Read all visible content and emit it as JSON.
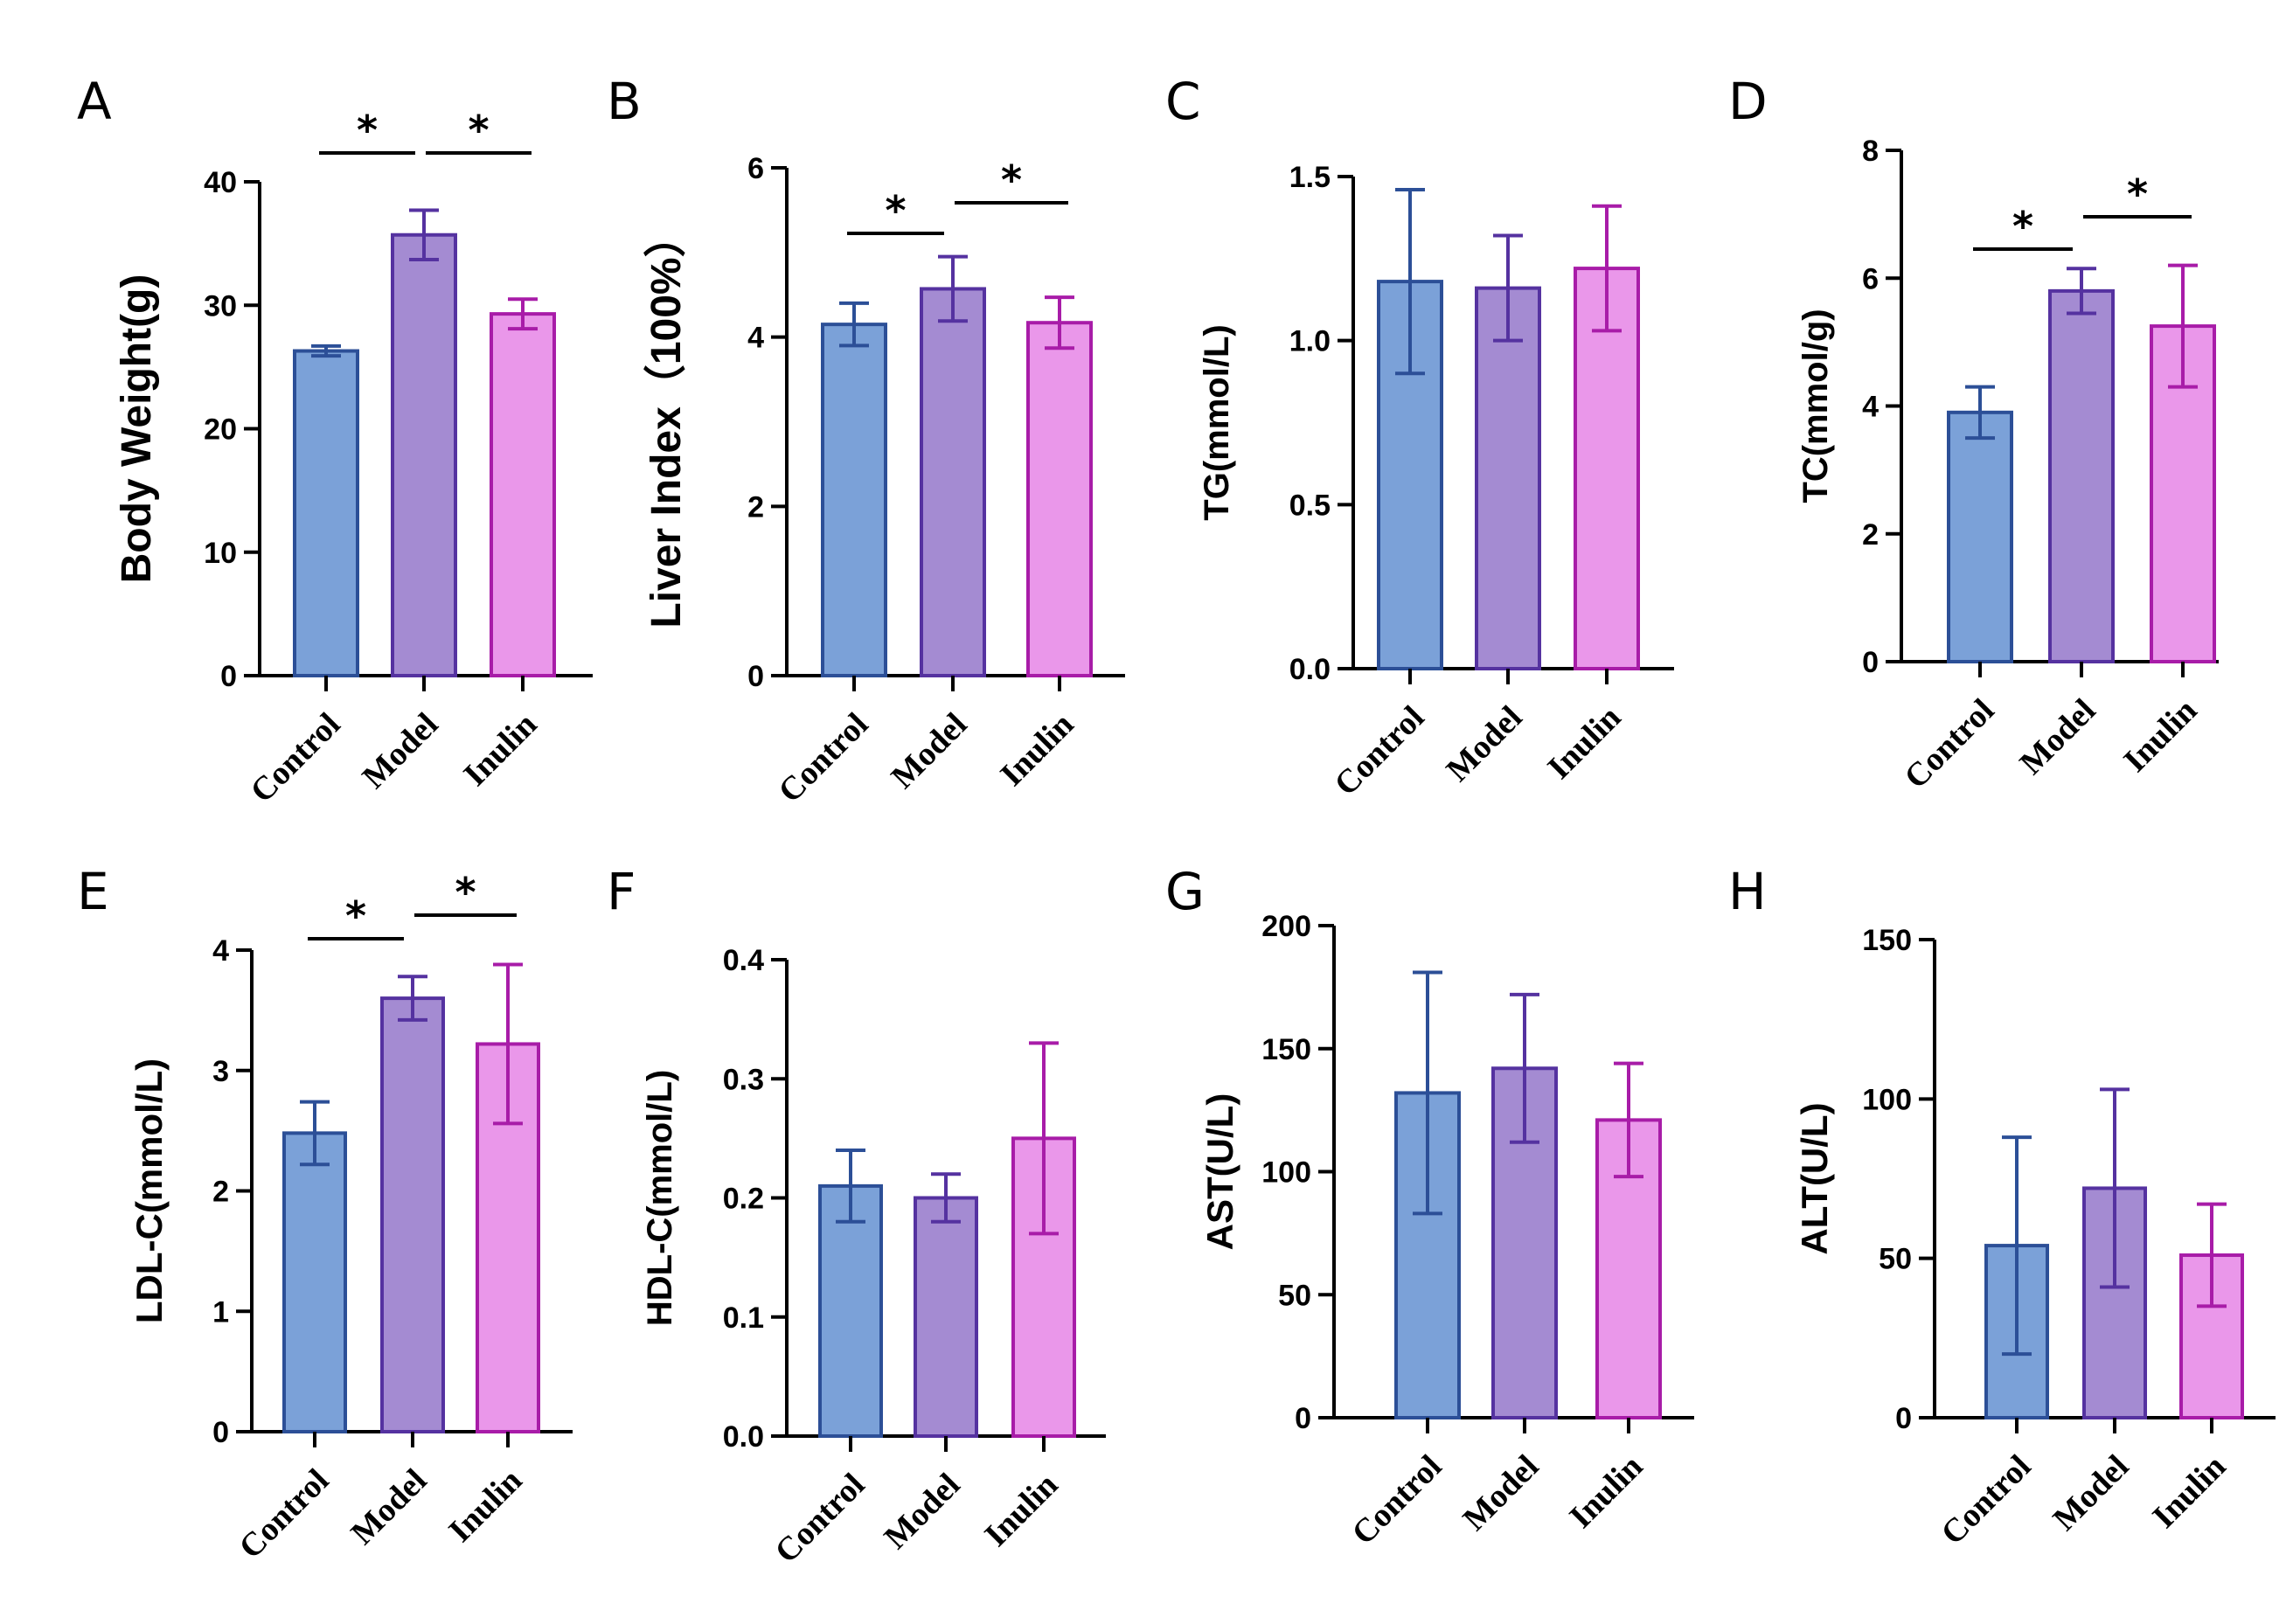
{
  "figure": {
    "colors": {
      "fills": [
        "#7ba1d8",
        "#a48bd2",
        "#ea97ea"
      ],
      "strokes": [
        "#2c4f97",
        "#5532a0",
        "#a81ca8"
      ],
      "axis": "#000000"
    }
  },
  "chart_data": [
    {
      "panel": "A",
      "type": "bar",
      "categories": [
        "Control",
        "Model",
        "Inulin"
      ],
      "values": [
        26.3,
        35.7,
        29.3
      ],
      "errors": [
        0.4,
        2.0,
        1.2
      ],
      "ylabel": "Body Weight(g)",
      "ylim": [
        0,
        40
      ],
      "yticks": [
        0,
        10,
        20,
        30,
        40
      ],
      "ytick_labels": [
        "0",
        "10",
        "20",
        "30",
        "40"
      ],
      "significance": [
        {
          "from": 0,
          "to": 1,
          "label": "*"
        },
        {
          "from": 1,
          "to": 2,
          "label": "*"
        }
      ]
    },
    {
      "panel": "B",
      "type": "bar",
      "categories": [
        "Control",
        "Model",
        "Inulin"
      ],
      "values": [
        4.15,
        4.57,
        4.17
      ],
      "errors": [
        0.25,
        0.38,
        0.3
      ],
      "ylabel": "Liver Index（100%）",
      "ylim": [
        0,
        6
      ],
      "yticks": [
        0,
        2,
        4,
        6
      ],
      "ytick_labels": [
        "0",
        "2",
        "4",
        "6"
      ],
      "significance": [
        {
          "from": 0,
          "to": 1,
          "label": "*"
        },
        {
          "from": 1,
          "to": 2,
          "label": "*"
        }
      ]
    },
    {
      "panel": "C",
      "type": "bar",
      "categories": [
        "Control",
        "Model",
        "Inulin"
      ],
      "values": [
        1.18,
        1.16,
        1.22
      ],
      "errors": [
        0.28,
        0.16,
        0.19
      ],
      "ylabel": "TG(mmol/L)",
      "ylim": [
        0,
        1.5
      ],
      "yticks": [
        0,
        0.5,
        1.0,
        1.5
      ],
      "ytick_labels": [
        "0.0",
        "0.5",
        "1.0",
        "1.5"
      ],
      "significance": []
    },
    {
      "panel": "D",
      "type": "bar",
      "categories": [
        "Control",
        "Model",
        "Inulin"
      ],
      "values": [
        3.9,
        5.8,
        5.25
      ],
      "errors": [
        0.4,
        0.35,
        0.95
      ],
      "ylabel": "TC(mmol/g)",
      "ylim": [
        0,
        8
      ],
      "yticks": [
        0,
        2,
        4,
        6,
        8
      ],
      "ytick_labels": [
        "0",
        "2",
        "4",
        "6",
        "8"
      ],
      "significance": [
        {
          "from": 0,
          "to": 1,
          "label": "*"
        },
        {
          "from": 1,
          "to": 2,
          "label": "*"
        }
      ]
    },
    {
      "panel": "E",
      "type": "bar",
      "categories": [
        "Control",
        "Model",
        "Inulin"
      ],
      "values": [
        2.48,
        3.6,
        3.22
      ],
      "errors": [
        0.26,
        0.18,
        0.66
      ],
      "ylabel": "LDL-C(mmol/L)",
      "ylim": [
        0,
        4
      ],
      "yticks": [
        0,
        1,
        2,
        3,
        4
      ],
      "ytick_labels": [
        "0",
        "1",
        "2",
        "3",
        "4"
      ],
      "significance": [
        {
          "from": 0,
          "to": 1,
          "label": "*"
        },
        {
          "from": 1,
          "to": 2,
          "label": "*"
        }
      ]
    },
    {
      "panel": "F",
      "type": "bar",
      "categories": [
        "Control",
        "Model",
        "Inulin"
      ],
      "values": [
        0.21,
        0.2,
        0.25
      ],
      "errors": [
        0.03,
        0.02,
        0.08
      ],
      "ylabel": "HDL-C(mmol/L)",
      "ylim": [
        0,
        0.4
      ],
      "yticks": [
        0,
        0.1,
        0.2,
        0.3,
        0.4
      ],
      "ytick_labels": [
        "0.0",
        "0.1",
        "0.2",
        "0.3",
        "0.4"
      ],
      "significance": []
    },
    {
      "panel": "G",
      "type": "bar",
      "categories": [
        "Control",
        "Model",
        "Inulin"
      ],
      "values": [
        132,
        142,
        121
      ],
      "errors": [
        49,
        30,
        23
      ],
      "ylabel": "AST(U/L)",
      "ylim": [
        0,
        200
      ],
      "yticks": [
        0,
        50,
        100,
        150,
        200
      ],
      "ytick_labels": [
        "0",
        "50",
        "100",
        "150",
        "200"
      ],
      "significance": []
    },
    {
      "panel": "H",
      "type": "bar",
      "categories": [
        "Control",
        "Model",
        "Inulin"
      ],
      "values": [
        54,
        72,
        51
      ],
      "errors": [
        34,
        31,
        16
      ],
      "ylabel": "ALT(U/L)",
      "ylim": [
        0,
        150
      ],
      "yticks": [
        0,
        50,
        100,
        150
      ],
      "ytick_labels": [
        "0",
        "50",
        "100",
        "150"
      ],
      "significance": []
    }
  ]
}
